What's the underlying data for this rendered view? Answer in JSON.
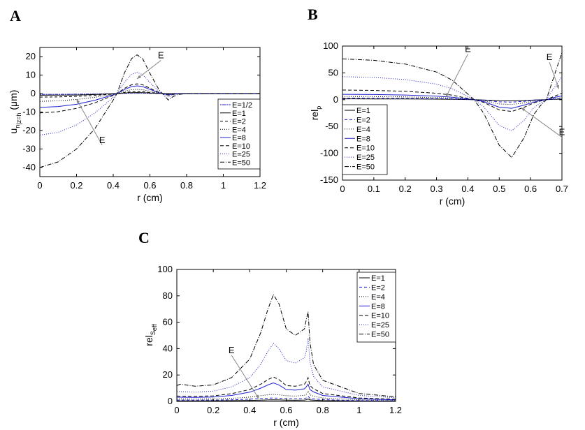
{
  "panels": {
    "A": {
      "letter": "A"
    },
    "B": {
      "letter": "B"
    },
    "C": {
      "letter": "C"
    }
  },
  "colors": {
    "black": "#000000",
    "blue": "#2020d0",
    "gray": "#888888"
  },
  "chart_data": [
    {
      "id": "A",
      "type": "line",
      "xlabel": "r (cm)",
      "ylabel_main": "u",
      "ylabel_sub1": "n",
      "ylabel_sub2": "|z=h",
      "ylabel_unit": "(μm)",
      "xlim": [
        0,
        1.2
      ],
      "ylim": [
        -45,
        25
      ],
      "xticks": [
        0,
        0.2,
        0.4,
        0.6,
        0.8,
        1,
        1.2
      ],
      "xticklabels": [
        "0",
        "0.2",
        "0.4",
        "0.6",
        "0.8",
        "1",
        "1.2"
      ],
      "yticks": [
        -40,
        -30,
        -20,
        -10,
        0,
        10,
        20
      ],
      "yticklabels": [
        "-40",
        "-30",
        "-20",
        "-10",
        "0",
        "10",
        "20"
      ],
      "annotations": [
        {
          "text": "E",
          "x": 0.66,
          "y": 18,
          "ax": 0.53,
          "ay": 8
        },
        {
          "text": "E",
          "x": 0.34,
          "y": -28,
          "ax": 0.2,
          "ay": -3
        }
      ],
      "series": [
        {
          "name": "E=1/2",
          "color": "#2020d0",
          "dash": "2,1,5,1",
          "x": [
            0,
            0.1,
            0.2,
            0.3,
            0.4,
            0.42,
            0.46,
            0.5,
            0.53,
            0.56,
            0.6,
            0.65,
            0.7,
            0.75,
            0.8,
            1,
            1.2
          ],
          "y": [
            -0.4,
            -0.38,
            -0.33,
            -0.25,
            -0.05,
            0,
            0.15,
            0.25,
            0.27,
            0.25,
            0.15,
            0.05,
            -0.05,
            0,
            0,
            0,
            0
          ]
        },
        {
          "name": "E=1",
          "color": "#000000",
          "dash": "",
          "x": [
            0,
            0.1,
            0.2,
            0.3,
            0.4,
            0.42,
            0.46,
            0.5,
            0.53,
            0.56,
            0.6,
            0.65,
            0.7,
            0.75,
            0.8,
            1,
            1.2
          ],
          "y": [
            -0.9,
            -0.85,
            -0.75,
            -0.5,
            -0.1,
            0,
            0.3,
            0.5,
            0.55,
            0.5,
            0.3,
            0.1,
            -0.1,
            0,
            0,
            0,
            0
          ]
        },
        {
          "name": "E=2",
          "color": "#000000",
          "dash": "4,3",
          "x": [
            0,
            0.1,
            0.2,
            0.3,
            0.4,
            0.42,
            0.46,
            0.5,
            0.53,
            0.56,
            0.6,
            0.65,
            0.7,
            0.75,
            0.8,
            1,
            1.2
          ],
          "y": [
            -1.9,
            -1.8,
            -1.5,
            -1.0,
            -0.2,
            0,
            0.6,
            1.0,
            1.1,
            1.0,
            0.6,
            0.2,
            -0.2,
            0,
            0,
            0,
            0
          ]
        },
        {
          "name": "E=4",
          "color": "#000000",
          "dash": "1,2",
          "x": [
            0,
            0.1,
            0.2,
            0.3,
            0.4,
            0.42,
            0.46,
            0.5,
            0.53,
            0.56,
            0.6,
            0.65,
            0.7,
            0.75,
            0.8,
            1,
            1.2
          ],
          "y": [
            -4.2,
            -3.9,
            -3.2,
            -2.0,
            -0.4,
            0,
            1.3,
            2.1,
            2.3,
            2.1,
            1.3,
            0.3,
            -0.4,
            0,
            0,
            0,
            0
          ]
        },
        {
          "name": "E=8",
          "color": "#2020d0",
          "dash": "",
          "x": [
            0,
            0.1,
            0.2,
            0.3,
            0.4,
            0.42,
            0.46,
            0.5,
            0.53,
            0.56,
            0.6,
            0.65,
            0.7,
            0.75,
            0.8,
            1,
            1.2
          ],
          "y": [
            -7.5,
            -7.0,
            -5.8,
            -3.6,
            -0.7,
            0,
            2.2,
            3.8,
            4.2,
            3.8,
            2.3,
            0.5,
            -0.7,
            0,
            0,
            0,
            0
          ]
        },
        {
          "name": "E=10",
          "color": "#000000",
          "dash": "5,3",
          "x": [
            0,
            0.1,
            0.2,
            0.3,
            0.4,
            0.42,
            0.46,
            0.5,
            0.53,
            0.56,
            0.6,
            0.65,
            0.7,
            0.75,
            0.8,
            1,
            1.2
          ],
          "y": [
            -10.5,
            -9.8,
            -8.0,
            -5.0,
            -1.0,
            0,
            2.8,
            4.8,
            5.3,
            4.8,
            2.9,
            0.6,
            -0.9,
            0,
            0,
            0,
            0
          ]
        },
        {
          "name": "E=25",
          "color": "#2020d0",
          "dash": "1,2",
          "x": [
            0,
            0.1,
            0.2,
            0.3,
            0.4,
            0.42,
            0.46,
            0.5,
            0.53,
            0.56,
            0.6,
            0.65,
            0.7,
            0.75,
            0.8,
            1,
            1.2
          ],
          "y": [
            -22.5,
            -21,
            -17,
            -10.5,
            -2,
            0,
            6,
            10.5,
            11.5,
            10.3,
            6,
            1,
            -1.8,
            0,
            0,
            0,
            0
          ]
        },
        {
          "name": "E=50",
          "color": "#000000",
          "dash": "6,2,1,2",
          "x": [
            0,
            0.1,
            0.2,
            0.3,
            0.4,
            0.42,
            0.46,
            0.5,
            0.53,
            0.56,
            0.6,
            0.65,
            0.7,
            0.72,
            0.75,
            0.8,
            1,
            1.2
          ],
          "y": [
            -40,
            -37,
            -30,
            -19,
            -3.5,
            0,
            11,
            19,
            21,
            19,
            11,
            2,
            -3.5,
            -2,
            -0.5,
            0,
            0,
            0
          ]
        }
      ]
    },
    {
      "id": "B",
      "type": "line",
      "xlabel": "r (cm)",
      "ylabel_main": "rel",
      "ylabel_sub1": "p",
      "xlim": [
        0,
        0.7
      ],
      "ylim": [
        -150,
        100
      ],
      "xticks": [
        0,
        0.1,
        0.2,
        0.3,
        0.4,
        0.5,
        0.6,
        0.7
      ],
      "xticklabels": [
        "0",
        "0.1",
        "0.2",
        "0.3",
        "0.4",
        "0.5",
        "0.6",
        "0.7"
      ],
      "yticks": [
        -150,
        -100,
        -50,
        0,
        50,
        100
      ],
      "yticklabels": [
        "-150",
        "-100",
        "-50",
        "0",
        "50",
        "100"
      ],
      "annotations": [
        {
          "text": "E",
          "x": 0.4,
          "y": 85,
          "ax": 0.33,
          "ay": 5
        },
        {
          "text": "E",
          "x": 0.66,
          "y": 70,
          "ax": 0.69,
          "ay": 20
        },
        {
          "text": "E",
          "x": 0.7,
          "y": -70,
          "ax": 0.57,
          "ay": -15
        }
      ],
      "series": [
        {
          "name": "E=1",
          "color": "#000000",
          "dash": "",
          "x": [
            0,
            0.1,
            0.2,
            0.3,
            0.35,
            0.4,
            0.42,
            0.45,
            0.5,
            0.54,
            0.58,
            0.61,
            0.63,
            0.65,
            0.67,
            0.7
          ],
          "y": [
            1.5,
            1.45,
            1.3,
            1.0,
            0.7,
            0.2,
            0,
            -0.5,
            -2,
            -2.2,
            -1.5,
            -0.6,
            -0.3,
            0,
            0.5,
            1
          ]
        },
        {
          "name": "E=2",
          "color": "#2020d0",
          "dash": "4,3",
          "x": [
            0,
            0.1,
            0.2,
            0.3,
            0.35,
            0.4,
            0.42,
            0.45,
            0.5,
            0.54,
            0.58,
            0.61,
            0.63,
            0.65,
            0.67,
            0.7
          ],
          "y": [
            3,
            2.9,
            2.6,
            2.0,
            1.4,
            0.4,
            0,
            -1,
            -4,
            -4.5,
            -3,
            -1.2,
            -0.6,
            0,
            1,
            2
          ]
        },
        {
          "name": "E=4",
          "color": "#000000",
          "dash": "1,2",
          "x": [
            0,
            0.1,
            0.2,
            0.3,
            0.35,
            0.4,
            0.42,
            0.45,
            0.5,
            0.54,
            0.58,
            0.61,
            0.63,
            0.65,
            0.67,
            0.7
          ],
          "y": [
            6,
            5.8,
            5.2,
            4.0,
            2.8,
            0.8,
            0,
            -2,
            -8,
            -9,
            -6,
            -2.5,
            -1.2,
            0,
            2,
            4
          ]
        },
        {
          "name": "E=8",
          "color": "#2020d0",
          "dash": "",
          "x": [
            0,
            0.1,
            0.2,
            0.3,
            0.35,
            0.4,
            0.42,
            0.45,
            0.5,
            0.54,
            0.58,
            0.61,
            0.63,
            0.65,
            0.67,
            0.7
          ],
          "y": [
            10,
            9.6,
            8.7,
            6.7,
            4.7,
            1.3,
            0,
            -3.5,
            -14,
            -16,
            -10,
            -4.5,
            -2,
            0,
            3.5,
            7
          ]
        },
        {
          "name": "E=10",
          "color": "#000000",
          "dash": "5,3",
          "x": [
            0,
            0.1,
            0.2,
            0.3,
            0.35,
            0.4,
            0.42,
            0.45,
            0.5,
            0.54,
            0.58,
            0.61,
            0.63,
            0.65,
            0.67,
            0.7
          ],
          "y": [
            18,
            17.3,
            15.6,
            12,
            8.5,
            2.4,
            0,
            -5,
            -19,
            -22,
            -14,
            -6,
            -2.7,
            0,
            5,
            12
          ]
        },
        {
          "name": "E=25",
          "color": "#2020d0",
          "dash": "1,2",
          "x": [
            0,
            0.1,
            0.2,
            0.3,
            0.35,
            0.4,
            0.42,
            0.45,
            0.5,
            0.54,
            0.58,
            0.61,
            0.63,
            0.65,
            0.67,
            0.7
          ],
          "y": [
            43,
            41.5,
            37.5,
            29,
            20.5,
            6,
            0,
            -13,
            -48,
            -58,
            -38,
            -15,
            -7,
            0,
            18,
            43
          ]
        },
        {
          "name": "E=50",
          "color": "#000000",
          "dash": "6,2,1,2",
          "x": [
            0,
            0.1,
            0.2,
            0.3,
            0.35,
            0.4,
            0.42,
            0.45,
            0.5,
            0.54,
            0.58,
            0.61,
            0.63,
            0.65,
            0.67,
            0.7
          ],
          "y": [
            76,
            73.5,
            66.5,
            51.5,
            36.5,
            10.5,
            0,
            -25,
            -85,
            -108,
            -70,
            -28,
            -12,
            0,
            35,
            88
          ]
        }
      ]
    },
    {
      "id": "C",
      "type": "line",
      "xlabel": "r (cm)",
      "ylabel_main": "rel",
      "ylabel_sub1": "S",
      "ylabel_sub2": "eff",
      "xlim": [
        0,
        1.2
      ],
      "ylim": [
        0,
        100
      ],
      "xticks": [
        0,
        0.2,
        0.4,
        0.6,
        0.8,
        1,
        1.2
      ],
      "xticklabels": [
        "0",
        "0.2",
        "0.4",
        "0.6",
        "0.8",
        "1",
        "1.2"
      ],
      "yticks": [
        0,
        20,
        40,
        60,
        80,
        100
      ],
      "yticklabels": [
        "0",
        "20",
        "40",
        "60",
        "80",
        "100"
      ],
      "annotations": [
        {
          "text": "E",
          "x": 0.3,
          "y": 35,
          "ax": 0.45,
          "ay": 2
        }
      ],
      "series": [
        {
          "name": "E=1",
          "color": "#000000",
          "dash": "",
          "x": [
            0,
            0.1,
            0.2,
            0.3,
            0.4,
            0.46,
            0.5,
            0.53,
            0.56,
            0.6,
            0.65,
            0.7,
            0.71,
            0.72,
            0.73,
            0.75,
            0.8,
            1,
            1.2
          ],
          "y": [
            0.4,
            0.4,
            0.45,
            0.55,
            0.75,
            0.95,
            1.1,
            1.15,
            1.1,
            0.95,
            0.85,
            1.0,
            1.2,
            1.8,
            1.1,
            0.9,
            0.6,
            0.3,
            0.2
          ]
        },
        {
          "name": "E=2",
          "color": "#2020d0",
          "dash": "4,3",
          "x": [
            0,
            0.1,
            0.2,
            0.3,
            0.4,
            0.46,
            0.5,
            0.53,
            0.56,
            0.6,
            0.65,
            0.7,
            0.71,
            0.72,
            0.73,
            0.75,
            0.8,
            1,
            1.2
          ],
          "y": [
            1.0,
            0.95,
            1.0,
            1.2,
            1.7,
            2.1,
            2.4,
            2.6,
            2.4,
            2.1,
            1.9,
            2.2,
            2.6,
            3.8,
            2.4,
            1.9,
            1.3,
            0.6,
            0.4
          ]
        },
        {
          "name": "E=4",
          "color": "#000000",
          "dash": "1,2",
          "x": [
            0,
            0.1,
            0.2,
            0.3,
            0.4,
            0.46,
            0.5,
            0.53,
            0.56,
            0.6,
            0.65,
            0.7,
            0.71,
            0.72,
            0.73,
            0.75,
            0.8,
            1,
            1.2
          ],
          "y": [
            1.8,
            1.7,
            1.8,
            2.3,
            3.3,
            4.3,
            5.0,
            5.3,
            5.0,
            4.3,
            4.0,
            4.6,
            5.4,
            7.8,
            5.0,
            3.9,
            2.6,
            1.2,
            0.8
          ]
        },
        {
          "name": "E=8",
          "color": "#2020d0",
          "dash": "",
          "x": [
            0,
            0.1,
            0.2,
            0.3,
            0.4,
            0.46,
            0.5,
            0.53,
            0.56,
            0.6,
            0.65,
            0.7,
            0.71,
            0.72,
            0.73,
            0.75,
            0.8,
            1,
            1.2
          ],
          "y": [
            3.2,
            3.0,
            3.3,
            4.5,
            7.0,
            10.0,
            12.5,
            14.0,
            12.5,
            9.0,
            8.5,
            9.5,
            11,
            13,
            9,
            7.2,
            4.5,
            2.0,
            1.2
          ]
        },
        {
          "name": "E=10",
          "color": "#000000",
          "dash": "5,3",
          "x": [
            0,
            0.1,
            0.2,
            0.3,
            0.4,
            0.46,
            0.5,
            0.53,
            0.56,
            0.6,
            0.65,
            0.7,
            0.71,
            0.72,
            0.73,
            0.75,
            0.8,
            1,
            1.2
          ],
          "y": [
            4.0,
            3.8,
            4.2,
            5.8,
            9.0,
            13.0,
            16.5,
            18.5,
            16.5,
            12,
            11.5,
            13,
            15,
            18,
            12,
            9.5,
            6,
            2.6,
            1.6
          ]
        },
        {
          "name": "E=25",
          "color": "#2020d0",
          "dash": "1,2",
          "x": [
            0,
            0.1,
            0.2,
            0.3,
            0.4,
            0.46,
            0.5,
            0.53,
            0.56,
            0.6,
            0.65,
            0.7,
            0.71,
            0.72,
            0.73,
            0.75,
            0.8,
            1,
            1.2
          ],
          "y": [
            7.5,
            7.0,
            7.8,
            11,
            18,
            28,
            38,
            44,
            40,
            31,
            29,
            33,
            38,
            48,
            30,
            19,
            11,
            4.5,
            2.8
          ]
        },
        {
          "name": "E=50",
          "color": "#000000",
          "dash": "6,2,1,2",
          "x": [
            0,
            0.02,
            0.1,
            0.2,
            0.3,
            0.4,
            0.46,
            0.5,
            0.53,
            0.56,
            0.6,
            0.65,
            0.7,
            0.71,
            0.72,
            0.73,
            0.75,
            0.8,
            1,
            1.2
          ],
          "y": [
            12,
            13,
            11.5,
            12.5,
            18,
            32,
            52,
            70,
            81,
            74,
            55,
            50,
            55,
            62,
            68,
            45,
            28,
            16,
            6,
            3.5
          ]
        }
      ]
    }
  ]
}
